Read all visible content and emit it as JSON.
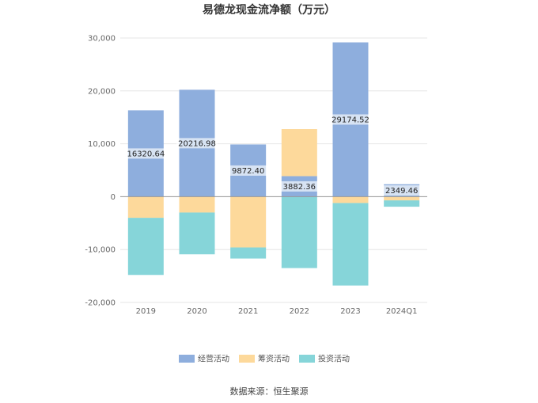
{
  "chart_data": {
    "type": "bar",
    "stacked": true,
    "title": "易德龙现金流净额（万元）",
    "categories": [
      "2019",
      "2020",
      "2021",
      "2022",
      "2023",
      "2024Q1"
    ],
    "series": [
      {
        "name": "经营活动",
        "color": "#8eaedd",
        "values": [
          16320.64,
          20216.98,
          9872.4,
          3882.36,
          29174.52,
          2349.46
        ]
      },
      {
        "name": "筹资活动",
        "color": "#fdd99b",
        "values": [
          -4000,
          -3000,
          -9600,
          8900,
          -1200,
          -700
        ]
      },
      {
        "name": "投资活动",
        "color": "#86d5d9",
        "values": [
          -10800,
          -7900,
          -2100,
          -13500,
          -15600,
          -1200
        ]
      }
    ],
    "data_labels": [
      "16320.64",
      "20216.98",
      "9872.40",
      "3882.36",
      "29174.52",
      "2349.46"
    ],
    "yticks": [
      30000,
      20000,
      10000,
      0,
      -10000,
      -20000
    ],
    "ytick_labels": [
      "30,000",
      "20,000",
      "10,000",
      "0",
      "-10,000",
      "-20,000"
    ],
    "ylim": [
      -20000,
      30000
    ],
    "grid": true,
    "legend_position": "bottom-center",
    "source": "数据来源：恒生聚源"
  }
}
